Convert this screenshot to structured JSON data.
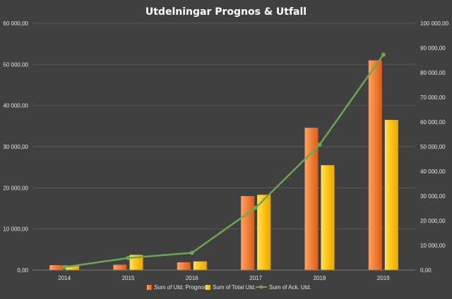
{
  "chart_data": {
    "type": "bar",
    "title": "Utdelningar Prognos & Utfall",
    "categories": [
      "2014",
      "2015",
      "2016",
      "2017",
      "2018",
      "2019"
    ],
    "series": [
      {
        "name": "Sum of Utd. Prognos",
        "type": "bar",
        "axis": "left",
        "color": "#f07f36",
        "values": [
          1200,
          1300,
          1900,
          18000,
          34600,
          51000
        ]
      },
      {
        "name": "Sum of Total Utd.",
        "type": "bar",
        "axis": "left",
        "color": "#ffc20e",
        "values": [
          1100,
          3700,
          2100,
          18300,
          25500,
          36500
        ]
      },
      {
        "name": "Sum of Ack. Utd.",
        "type": "line",
        "axis": "right",
        "color": "#6aa84f",
        "values": [
          1200,
          4900,
          7000,
          25300,
          50800,
          87300
        ]
      }
    ],
    "y_left": {
      "lim": [
        0,
        60000
      ],
      "ticks": [
        "0,00",
        "10 000,00",
        "20 000,00",
        "30 000,00",
        "40 000,00",
        "50 000,00",
        "60 000,00"
      ]
    },
    "y_right": {
      "lim": [
        0,
        100000
      ],
      "ticks": [
        "0,00",
        "10 000,00",
        "20 000,00",
        "30 000,00",
        "40 000,00",
        "50 000,00",
        "60 000,00",
        "70 000,00",
        "80 000,00",
        "90 000,00",
        "100 000,00"
      ]
    },
    "xlabel": "",
    "ylabel": "",
    "grid": true,
    "legend": "bottom"
  }
}
